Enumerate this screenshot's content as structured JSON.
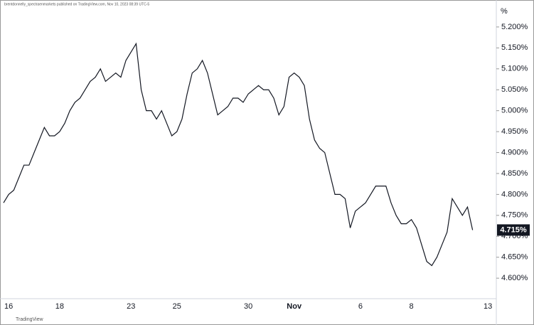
{
  "chart_data": {
    "type": "line",
    "subtitle": "brentdonnelly_spectraenmarkets published on TradingView.com, Nov 10, 2023 08:39 UTC-5",
    "watermark": "TradingView",
    "y_unit": "%",
    "last_label": "4.715%",
    "categories": [
      null,
      "16",
      null,
      null,
      null,
      null,
      null,
      null,
      null,
      null,
      null,
      "18",
      null,
      null,
      null,
      null,
      null,
      null,
      null,
      null,
      null,
      null,
      null,
      null,
      null,
      "23",
      null,
      null,
      null,
      null,
      null,
      null,
      null,
      null,
      "25",
      null,
      null,
      null,
      null,
      null,
      null,
      null,
      null,
      null,
      null,
      null,
      null,
      null,
      "30",
      null,
      null,
      null,
      null,
      null,
      null,
      null,
      null,
      "Nov",
      null,
      null,
      null,
      null,
      null,
      null,
      null,
      null,
      null,
      null,
      null,
      null,
      "6",
      null,
      null,
      null,
      null,
      null,
      null,
      null,
      null,
      null,
      "8",
      null,
      null,
      null,
      null,
      null,
      null,
      null,
      null,
      null,
      null,
      null,
      null,
      null,
      null,
      "13"
    ],
    "series": [
      {
        "color": "#131722",
        "values": [
          4.78,
          4.8,
          4.81,
          4.84,
          4.87,
          4.87,
          4.9,
          4.93,
          4.96,
          4.94,
          4.94,
          4.95,
          4.97,
          5.0,
          5.02,
          5.03,
          5.05,
          5.07,
          5.08,
          5.1,
          5.07,
          5.08,
          5.09,
          5.08,
          5.12,
          5.14,
          5.16,
          5.05,
          5.0,
          5.0,
          4.98,
          5.0,
          4.97,
          4.94,
          4.95,
          4.98,
          5.04,
          5.09,
          5.1,
          5.12,
          5.09,
          5.04,
          4.99,
          5.0,
          5.01,
          5.03,
          5.03,
          5.02,
          5.04,
          5.05,
          5.06,
          5.05,
          5.05,
          5.03,
          4.99,
          5.01,
          5.08,
          5.09,
          5.08,
          5.06,
          4.98,
          4.93,
          4.91,
          4.9,
          4.85,
          4.8,
          4.8,
          4.79,
          4.72,
          4.76,
          4.77,
          4.78,
          4.8,
          4.82,
          4.82,
          4.82,
          4.78,
          4.75,
          4.73,
          4.73,
          4.74,
          4.72,
          4.68,
          4.64,
          4.63,
          4.65,
          4.68,
          4.71,
          4.79,
          4.77,
          4.75,
          4.77,
          4.715,
          null,
          null,
          null
        ]
      }
    ],
    "ylim": [
      4.551,
      5.244
    ],
    "yticks": [
      {
        "value": 4.6,
        "label": "4.600%"
      },
      {
        "value": 4.65,
        "label": "4.650%"
      },
      {
        "value": 4.7,
        "label": "4.700%"
      },
      {
        "value": 4.75,
        "label": "4.750%"
      },
      {
        "value": 4.8,
        "label": "4.800%"
      },
      {
        "value": 4.85,
        "label": "4.850%"
      },
      {
        "value": 4.9,
        "label": "4.900%"
      },
      {
        "value": 4.95,
        "label": "4.950%"
      },
      {
        "value": 5.0,
        "label": "5.000%"
      },
      {
        "value": 5.05,
        "label": "5.050%"
      },
      {
        "value": 5.1,
        "label": "5.100%"
      },
      {
        "value": 5.15,
        "label": "5.150%"
      },
      {
        "value": 5.2,
        "label": "5.200%"
      }
    ],
    "grid": false
  }
}
